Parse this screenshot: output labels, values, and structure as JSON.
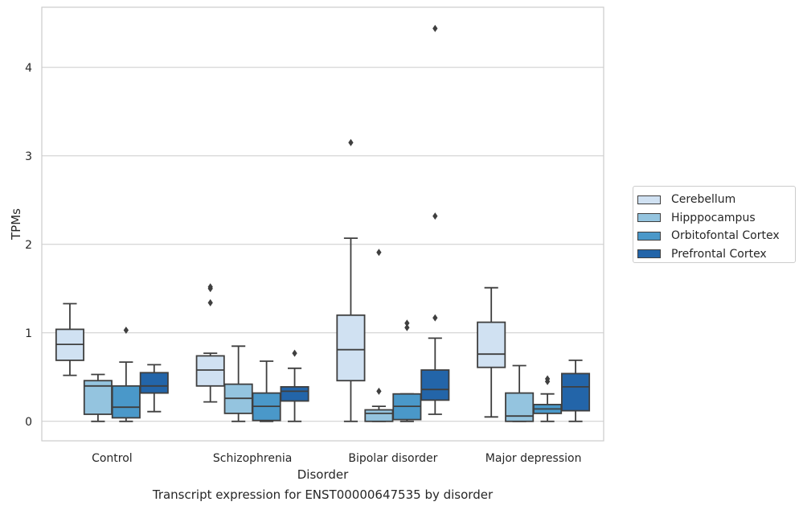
{
  "chart_data": {
    "type": "box",
    "title": "Transcript expression for ENST00000647535 by disorder",
    "xlabel": "Disorder",
    "ylabel": "TPMs",
    "ylim": [
      -0.22,
      4.68
    ],
    "yticks": [
      0,
      1,
      2,
      3,
      4
    ],
    "categories": [
      "Control",
      "Schizophrenia",
      "Bipolar disorder",
      "Major depression"
    ],
    "grid": "horizontal",
    "legend_position": "right",
    "series": [
      {
        "name": "Cerebellum",
        "color": "#d0e1f2",
        "boxes": [
          {
            "whisker_low": 0.52,
            "q1": 0.69,
            "median": 0.87,
            "q3": 1.04,
            "whisker_high": 1.33,
            "outliers": []
          },
          {
            "whisker_low": 0.22,
            "q1": 0.4,
            "median": 0.58,
            "q3": 0.74,
            "whisker_high": 0.77,
            "outliers": [
              1.34,
              1.5,
              1.52
            ]
          },
          {
            "whisker_low": 0.0,
            "q1": 0.46,
            "median": 0.81,
            "q3": 1.2,
            "whisker_high": 2.07,
            "outliers": [
              3.15
            ]
          },
          {
            "whisker_low": 0.05,
            "q1": 0.61,
            "median": 0.76,
            "q3": 1.12,
            "whisker_high": 1.51,
            "outliers": []
          }
        ]
      },
      {
        "name": "Hipppocampus",
        "color": "#94c4df",
        "boxes": [
          {
            "whisker_low": 0.0,
            "q1": 0.08,
            "median": 0.4,
            "q3": 0.46,
            "whisker_high": 0.53,
            "outliers": []
          },
          {
            "whisker_low": 0.0,
            "q1": 0.09,
            "median": 0.26,
            "q3": 0.42,
            "whisker_high": 0.85,
            "outliers": []
          },
          {
            "whisker_low": 0.0,
            "q1": 0.0,
            "median": 0.09,
            "q3": 0.13,
            "whisker_high": 0.17,
            "outliers": [
              0.34,
              1.91
            ]
          },
          {
            "whisker_low": 0.0,
            "q1": 0.0,
            "median": 0.06,
            "q3": 0.32,
            "whisker_high": 0.63,
            "outliers": []
          }
        ]
      },
      {
        "name": "Orbitofontal Cortex",
        "color": "#4a98c9",
        "boxes": [
          {
            "whisker_low": 0.0,
            "q1": 0.04,
            "median": 0.16,
            "q3": 0.4,
            "whisker_high": 0.67,
            "outliers": [
              1.03
            ]
          },
          {
            "whisker_low": 0.0,
            "q1": 0.01,
            "median": 0.17,
            "q3": 0.32,
            "whisker_high": 0.68,
            "outliers": []
          },
          {
            "whisker_low": 0.0,
            "q1": 0.02,
            "median": 0.17,
            "q3": 0.31,
            "whisker_high": 0.31,
            "outliers": [
              1.06,
              1.11
            ]
          },
          {
            "whisker_low": 0.0,
            "q1": 0.09,
            "median": 0.14,
            "q3": 0.19,
            "whisker_high": 0.31,
            "outliers": [
              0.45,
              0.48
            ]
          }
        ]
      },
      {
        "name": "Prefrontal Cortex",
        "color": "#2365a9",
        "boxes": [
          {
            "whisker_low": 0.11,
            "q1": 0.32,
            "median": 0.4,
            "q3": 0.55,
            "whisker_high": 0.64,
            "outliers": []
          },
          {
            "whisker_low": 0.0,
            "q1": 0.23,
            "median": 0.34,
            "q3": 0.39,
            "whisker_high": 0.6,
            "outliers": [
              0.77
            ]
          },
          {
            "whisker_low": 0.08,
            "q1": 0.24,
            "median": 0.36,
            "q3": 0.58,
            "whisker_high": 0.94,
            "outliers": [
              1.17,
              2.32,
              4.44
            ]
          },
          {
            "whisker_low": 0.0,
            "q1": 0.12,
            "median": 0.39,
            "q3": 0.54,
            "whisker_high": 0.69,
            "outliers": []
          }
        ]
      }
    ]
  }
}
